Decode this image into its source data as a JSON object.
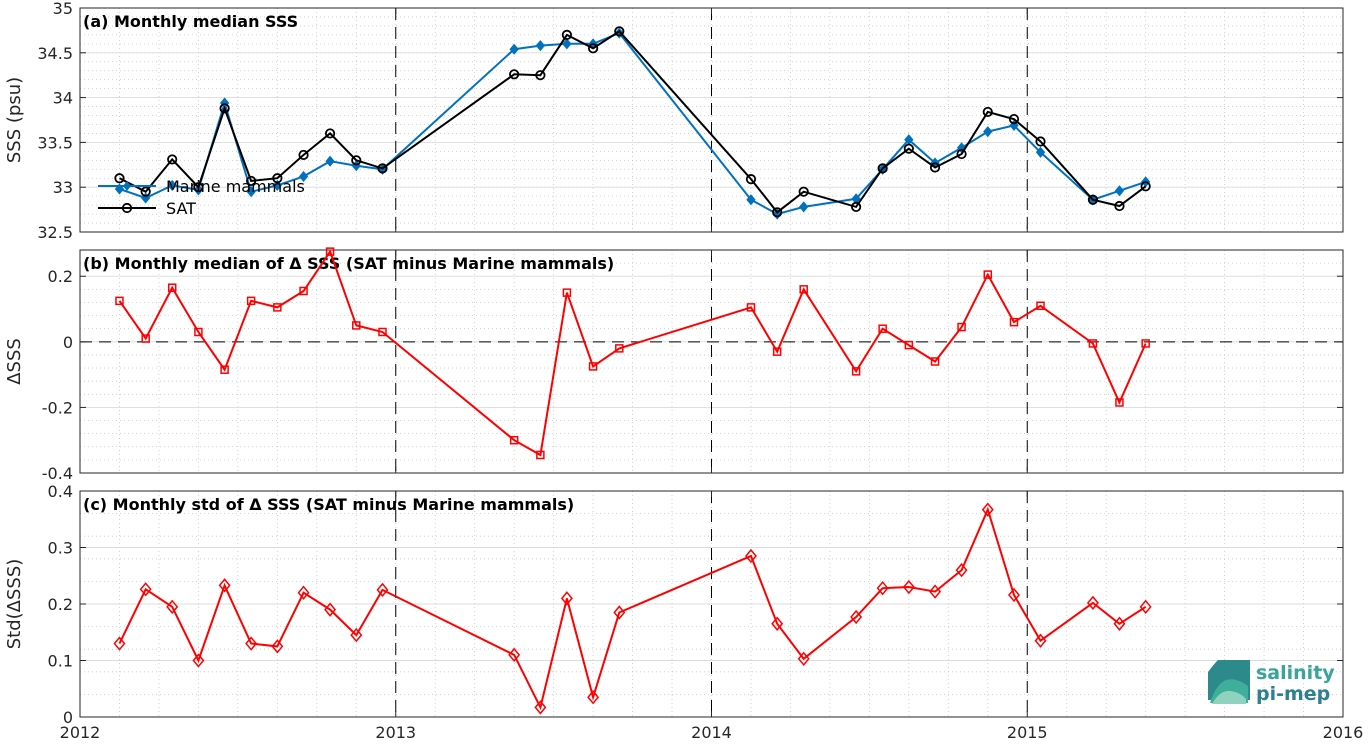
{
  "chart_data": [
    {
      "type": "line",
      "title": "(a) Monthly median SSS",
      "ylabel": "SSS (psu)",
      "xlim": [
        2012,
        2016
      ],
      "ylim": [
        32.5,
        35
      ],
      "xticks": [
        "2012",
        "2013",
        "2014",
        "2015",
        "2016"
      ],
      "yticks": [
        "32.5",
        "33",
        "33.5",
        "34",
        "34.5",
        "35"
      ],
      "grid": true,
      "legend_position": "bottom-left",
      "series": [
        {
          "name": "Marine mammals",
          "color": "#0072bd",
          "marker": "diamond",
          "x": [
            2012.125,
            2012.208,
            2012.292,
            2012.375,
            2012.458,
            2012.542,
            2012.625,
            2012.708,
            2012.792,
            2012.875,
            2012.958,
            2013.375,
            2013.458,
            2013.542,
            2013.625,
            2013.708,
            2014.125,
            2014.208,
            2014.292,
            2014.458,
            2014.542,
            2014.625,
            2014.708,
            2014.792,
            2014.875,
            2014.958,
            2015.042,
            2015.208,
            2015.292,
            2015.375
          ],
          "values": [
            32.98,
            32.88,
            33.02,
            32.97,
            33.94,
            32.95,
            33.02,
            33.12,
            33.29,
            33.24,
            33.2,
            34.54,
            34.58,
            34.6,
            34.6,
            34.72,
            32.86,
            32.7,
            32.78,
            32.87,
            33.2,
            33.53,
            33.27,
            33.44,
            33.62,
            33.69,
            33.39,
            32.86,
            32.96,
            33.06
          ]
        },
        {
          "name": "SAT",
          "color": "#000000",
          "marker": "circle",
          "x": [
            2012.125,
            2012.208,
            2012.292,
            2012.375,
            2012.458,
            2012.542,
            2012.625,
            2012.708,
            2012.792,
            2012.875,
            2012.958,
            2013.375,
            2013.458,
            2013.542,
            2013.625,
            2013.708,
            2014.125,
            2014.208,
            2014.292,
            2014.458,
            2014.542,
            2014.625,
            2014.708,
            2014.792,
            2014.875,
            2014.958,
            2015.042,
            2015.208,
            2015.292,
            2015.375
          ],
          "values": [
            33.1,
            32.95,
            33.31,
            33.0,
            33.88,
            33.07,
            33.1,
            33.36,
            33.6,
            33.3,
            33.21,
            34.26,
            34.25,
            34.7,
            34.55,
            34.74,
            33.09,
            32.72,
            32.95,
            32.78,
            33.21,
            33.43,
            33.22,
            33.37,
            33.84,
            33.76,
            33.51,
            32.86,
            32.79,
            33.01
          ]
        }
      ]
    },
    {
      "type": "line",
      "title": "(b) Monthly median of Δ SSS (SAT minus Marine mammals)",
      "ylabel": "ΔSSS",
      "xlim": [
        2012,
        2016
      ],
      "ylim": [
        -0.4,
        0.28
      ],
      "xticks": [
        "2012",
        "2013",
        "2014",
        "2015",
        "2016"
      ],
      "yticks": [
        "-0.4",
        "-0.2",
        "0",
        "0.2"
      ],
      "grid": true,
      "zero_line": true,
      "series": [
        {
          "color": "#ff0000",
          "marker": "square",
          "x": [
            2012.125,
            2012.208,
            2012.292,
            2012.375,
            2012.458,
            2012.542,
            2012.625,
            2012.708,
            2012.792,
            2012.875,
            2012.958,
            2013.375,
            2013.458,
            2013.542,
            2013.625,
            2013.708,
            2014.125,
            2014.208,
            2014.292,
            2014.458,
            2014.542,
            2014.625,
            2014.708,
            2014.792,
            2014.875,
            2014.958,
            2015.042,
            2015.208,
            2015.292,
            2015.375
          ],
          "values": [
            0.125,
            0.01,
            0.165,
            0.03,
            -0.085,
            0.125,
            0.105,
            0.155,
            0.275,
            0.05,
            0.03,
            -0.3,
            -0.345,
            0.15,
            -0.075,
            -0.02,
            0.105,
            -0.03,
            0.16,
            -0.09,
            0.04,
            -0.01,
            -0.06,
            0.045,
            0.205,
            0.06,
            0.11,
            -0.005,
            -0.185,
            -0.005
          ]
        }
      ]
    },
    {
      "type": "line",
      "title": "(c) Monthly std of Δ SSS (SAT minus Marine mammals)",
      "ylabel": "Std(ΔSSS)",
      "xlim": [
        2012,
        2016
      ],
      "ylim": [
        0,
        0.4
      ],
      "xticks": [
        "2012",
        "2013",
        "2014",
        "2015",
        "2016"
      ],
      "yticks": [
        "0",
        "0.1",
        "0.2",
        "0.3",
        "0.4"
      ],
      "grid": true,
      "series": [
        {
          "color": "#ff0000",
          "marker": "diamond",
          "x": [
            2012.125,
            2012.208,
            2012.292,
            2012.375,
            2012.458,
            2012.542,
            2012.625,
            2012.708,
            2012.792,
            2012.875,
            2012.958,
            2013.375,
            2013.458,
            2013.542,
            2013.625,
            2013.708,
            2014.125,
            2014.208,
            2014.292,
            2014.458,
            2014.542,
            2014.625,
            2014.708,
            2014.792,
            2014.875,
            2014.958,
            2015.042,
            2015.208,
            2015.292,
            2015.375
          ],
          "values": [
            0.13,
            0.226,
            0.195,
            0.1,
            0.233,
            0.13,
            0.125,
            0.22,
            0.19,
            0.145,
            0.225,
            0.11,
            0.017,
            0.21,
            0.035,
            0.185,
            0.285,
            0.165,
            0.103,
            0.177,
            0.228,
            0.23,
            0.222,
            0.26,
            0.367,
            0.216,
            0.135,
            0.202,
            0.165,
            0.195
          ]
        }
      ]
    }
  ],
  "logo": {
    "line1": "salinity",
    "line2": "pi-mep"
  }
}
